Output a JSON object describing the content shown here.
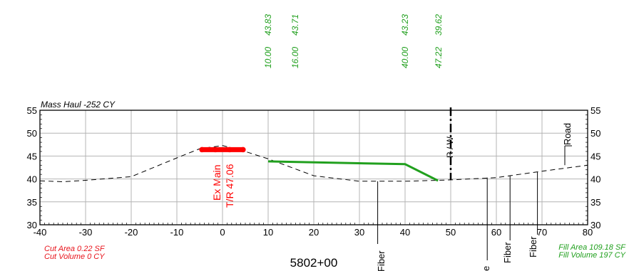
{
  "station_label": "5802+00",
  "mass_haul": "Mass Haul -252 CY",
  "cut": {
    "area": "Cut Area 0.22 SF",
    "volume": "Cut Volume 0 CY",
    "color": "#e8131b"
  },
  "fill": {
    "area": "Fill Area 109.18 SF",
    "volume": "Fill Volume 197 CY",
    "color": "#21a01e"
  },
  "offset_labels": [
    "10.00",
    "16.00",
    "40.00",
    "47.22"
  ],
  "elevation_labels": [
    "43.83",
    "43.71",
    "43.23",
    "39.62"
  ],
  "utility": {
    "name": "Ex Main",
    "tr": "T/R 47.06",
    "color": "#ff0000"
  },
  "row_label": "R / W",
  "road_label": "Road",
  "fiber_label": "Fiber",
  "e_label": "e",
  "chart_data": {
    "type": "line",
    "xlim": [
      -40,
      80
    ],
    "ylim": [
      30,
      55
    ],
    "x_ticks": [
      "-40",
      "-30",
      "-20",
      "-10",
      "0",
      "10",
      "20",
      "30",
      "40",
      "50",
      "60",
      "70",
      "80"
    ],
    "y_ticks": [
      "30",
      "35",
      "40",
      "45",
      "50",
      "55"
    ],
    "grid": true,
    "series": [
      {
        "values": [
          [
            -40,
            39.6
          ],
          [
            -35,
            39.4
          ],
          [
            -30,
            39.7
          ],
          [
            -20,
            40.5
          ],
          [
            -10,
            44.6
          ],
          [
            -5,
            46.6
          ],
          [
            0,
            47.3
          ],
          [
            5,
            46.0
          ],
          [
            10,
            44.4
          ],
          [
            20,
            40.7
          ],
          [
            30,
            39.5
          ],
          [
            40,
            39.5
          ],
          [
            47.22,
            39.7
          ],
          [
            50,
            39.8
          ],
          [
            60,
            40.3
          ],
          [
            70,
            41.7
          ],
          [
            80,
            43.0
          ]
        ]
      },
      {
        "values": [
          [
            10,
            43.83
          ],
          [
            40,
            43.23
          ],
          [
            47.22,
            39.62
          ]
        ]
      }
    ],
    "utility_marker": [
      [
        -4.5,
        46.4
      ],
      [
        4.5,
        46.4
      ]
    ],
    "row_x": 50,
    "callouts": [
      {
        "label": "Fiber",
        "x": 34,
        "y": 39.5
      },
      {
        "label": "e",
        "x": 58,
        "y": 40.3
      },
      {
        "label": "Fiber",
        "x": 63,
        "y": 40.8
      },
      {
        "label": "Fiber",
        "x": 69,
        "y": 41.5
      },
      {
        "label": "Road",
        "x": 75,
        "y": 43.0
      }
    ]
  }
}
